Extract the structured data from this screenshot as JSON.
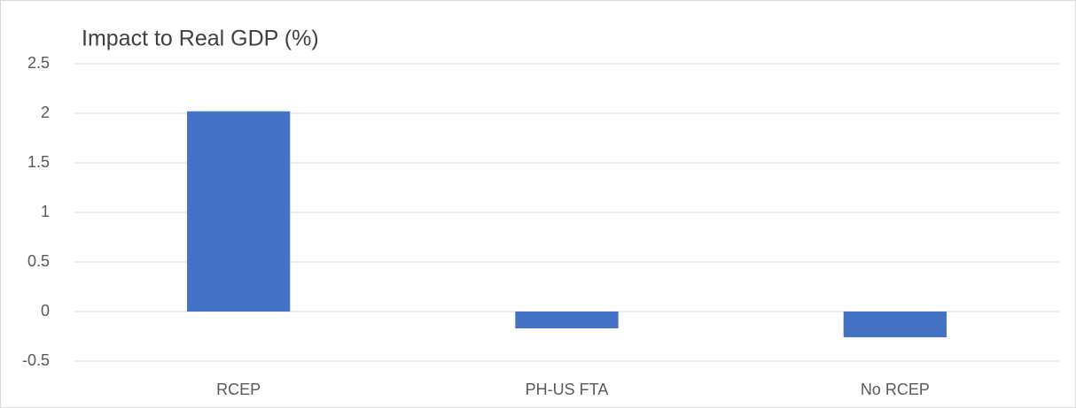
{
  "chart_data": {
    "type": "bar",
    "title": "Impact to Real GDP (%)",
    "categories": [
      "RCEP",
      "PH-US FTA",
      "No RCEP"
    ],
    "values": [
      2.02,
      -0.17,
      -0.26
    ],
    "color": "#4472c4",
    "ylim": [
      -0.5,
      2.5
    ],
    "yticks": [
      -0.5,
      0,
      0.5,
      1,
      1.5,
      2,
      2.5
    ],
    "grid": true
  }
}
